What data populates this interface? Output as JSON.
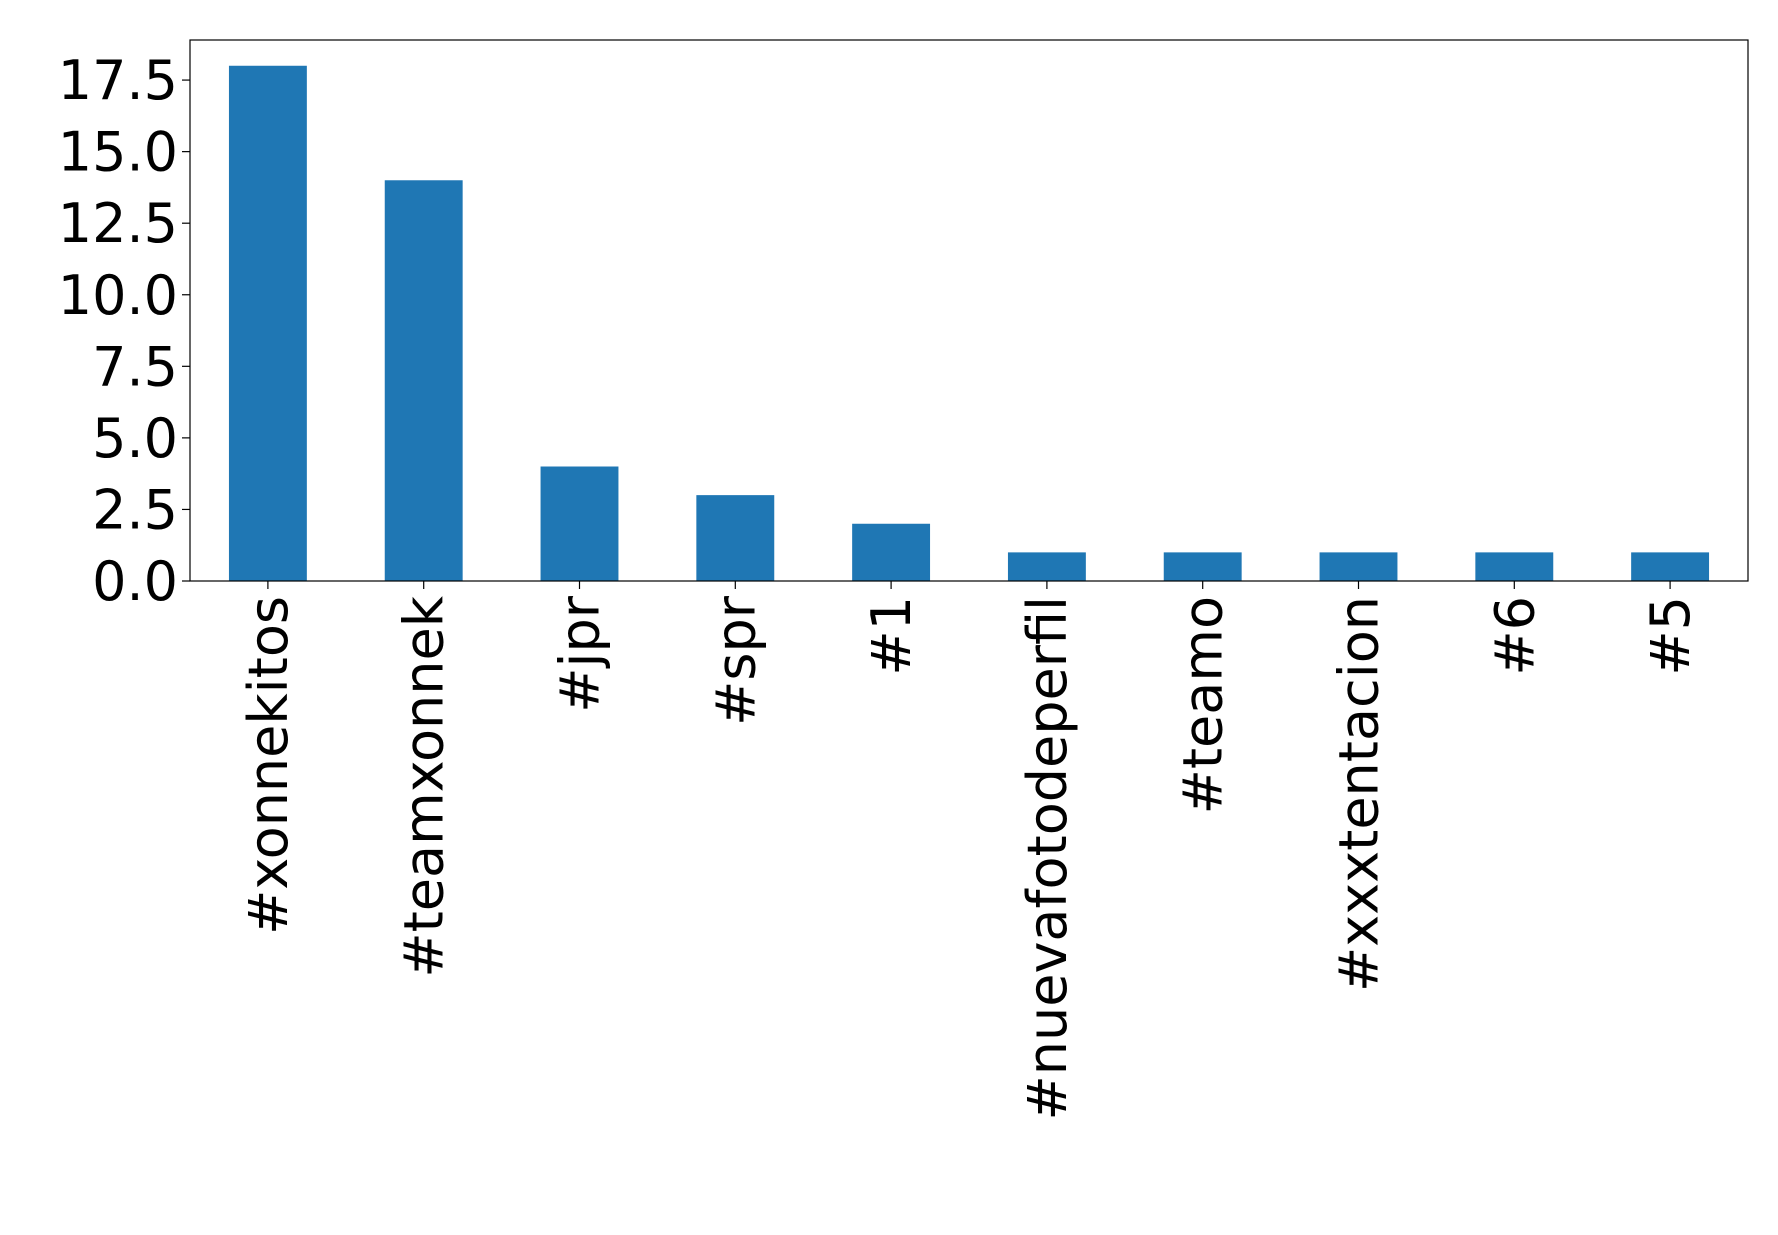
{
  "chart_data": {
    "type": "bar",
    "categories": [
      "#xonnekitos",
      "#teamxonnek",
      "#jpr",
      "#spr",
      "#1",
      "#nuevafotodeperfil",
      "#teamo",
      "#xxxtentacion",
      "#6",
      "#5"
    ],
    "values": [
      18,
      14,
      4,
      3,
      2,
      1,
      1,
      1,
      1,
      1
    ],
    "title": "",
    "xlabel": "",
    "ylabel": "",
    "ylim": [
      0,
      18.9
    ],
    "yticks": [
      "0.0",
      "2.5",
      "5.0",
      "7.5",
      "10.0",
      "12.5",
      "15.0",
      "17.5"
    ],
    "grid": false,
    "legend": "none",
    "bar_color": "#1f77b4"
  }
}
